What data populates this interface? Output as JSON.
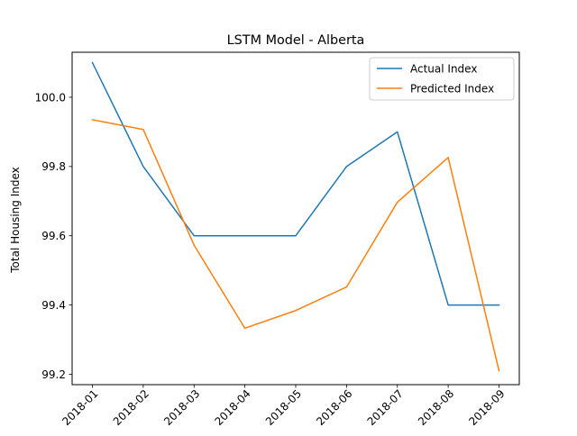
{
  "chart_data": {
    "type": "line",
    "title": "LSTM Model - Alberta",
    "xlabel": "",
    "ylabel": "Total Housing Index",
    "categories": [
      "2018-01",
      "2018-02",
      "2018-03",
      "2018-04",
      "2018-05",
      "2018-06",
      "2018-07",
      "2018-08",
      "2018-09"
    ],
    "series": [
      {
        "name": "Actual Index",
        "color": "#1f77b4",
        "values": [
          100.1,
          99.8,
          99.6,
          99.6,
          99.6,
          99.8,
          99.9,
          99.4,
          99.4
        ]
      },
      {
        "name": "Predicted Index",
        "color": "#ff7f0e",
        "values": [
          99.935,
          99.907,
          99.573,
          99.333,
          99.384,
          99.452,
          99.697,
          99.826,
          99.21
        ]
      }
    ],
    "yticks": [
      99.2,
      99.4,
      99.6,
      99.8,
      100.0
    ],
    "ytick_labels": [
      "99.2",
      "99.4",
      "99.6",
      "99.8",
      "100.0"
    ],
    "ylim": [
      99.17,
      100.13
    ],
    "grid": false,
    "legend_position": "top-right",
    "xtick_rotation": 45
  }
}
